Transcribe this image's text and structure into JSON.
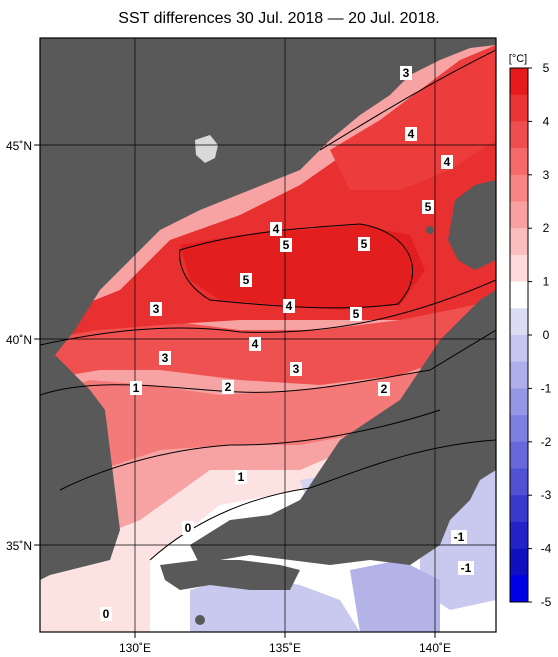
{
  "title": "SST differences 30 Jul. 2018 — 20 Jul. 2018.",
  "colorbar": {
    "unit": "[°C]",
    "tick_labels": [
      "5",
      "4",
      "3",
      "2",
      "1",
      "0",
      "-1",
      "-2",
      "-3",
      "-4",
      "-5"
    ],
    "colors": [
      "#e61a1a",
      "#ec3434",
      "#f04e4e",
      "#f46a6a",
      "#f78585",
      "#f9a1a1",
      "#fbbdbd",
      "#fdd9d9",
      "#ffffff",
      "#dcdcf5",
      "#c5c5f0",
      "#aeaeeb",
      "#9696e6",
      "#7f7fe0",
      "#6868da",
      "#5151d4",
      "#3a3ace",
      "#2323c8",
      "#1010c0",
      "#0000e6"
    ]
  },
  "axes": {
    "lat_labels": [
      "45˚N",
      "40˚N",
      "35˚N"
    ],
    "lon_labels": [
      "130˚E",
      "135˚E",
      "140˚E"
    ]
  },
  "contour_labels": [
    "3",
    "4",
    "4",
    "5",
    "4",
    "5",
    "5",
    "5",
    "4",
    "3",
    "5",
    "4",
    "3",
    "3",
    "1",
    "2",
    "3",
    "2",
    "1",
    "0",
    "-1",
    "-1",
    "0"
  ],
  "colors": {
    "land": "#595959",
    "frame": "#000000"
  }
}
